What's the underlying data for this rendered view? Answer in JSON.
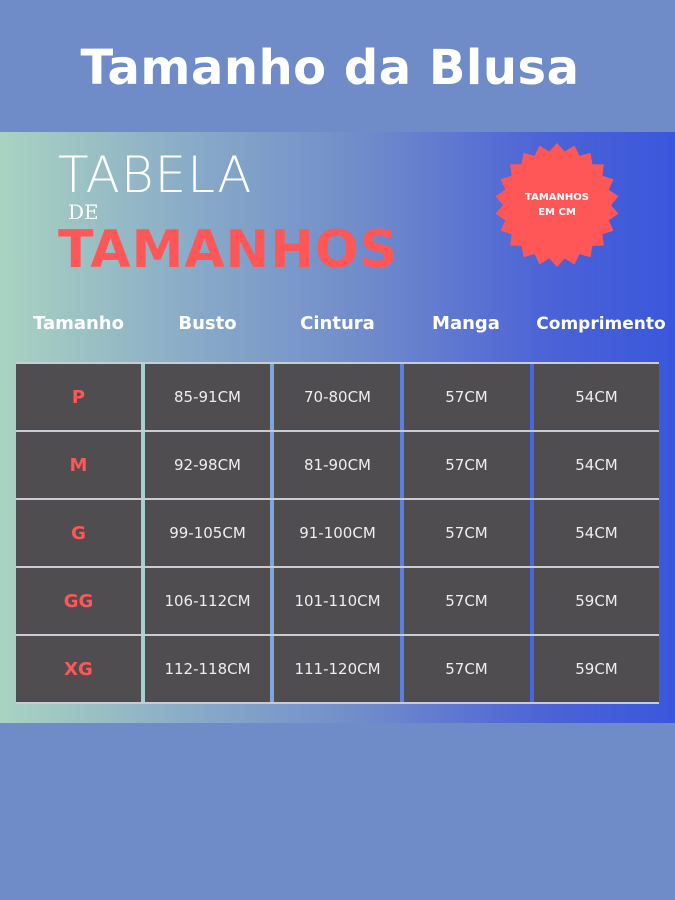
{
  "page_title": "Tamanho da Blusa",
  "banner": {
    "line1": "TABELA",
    "line2": "DE",
    "line3": "TAMANHOS",
    "badge_line1": "TAMANHOS",
    "badge_line2": "EM CM"
  },
  "colors": {
    "accent": "#ff5757",
    "background": "#6f8bc8",
    "table": "#4f4d4f"
  },
  "table": {
    "headers": [
      "Tamanho",
      "Busto",
      "Cintura",
      "Manga",
      "Comprimento"
    ],
    "rows": [
      [
        "P",
        "85-91CM",
        "70-80CM",
        "57CM",
        "54CM"
      ],
      [
        "M",
        "92-98CM",
        "81-90CM",
        "57CM",
        "54CM"
      ],
      [
        "G",
        "99-105CM",
        "91-100CM",
        "57CM",
        "54CM"
      ],
      [
        "GG",
        "106-112CM",
        "101-110CM",
        "57CM",
        "59CM"
      ],
      [
        "XG",
        "112-118CM",
        "111-120CM",
        "57CM",
        "59CM"
      ]
    ]
  }
}
